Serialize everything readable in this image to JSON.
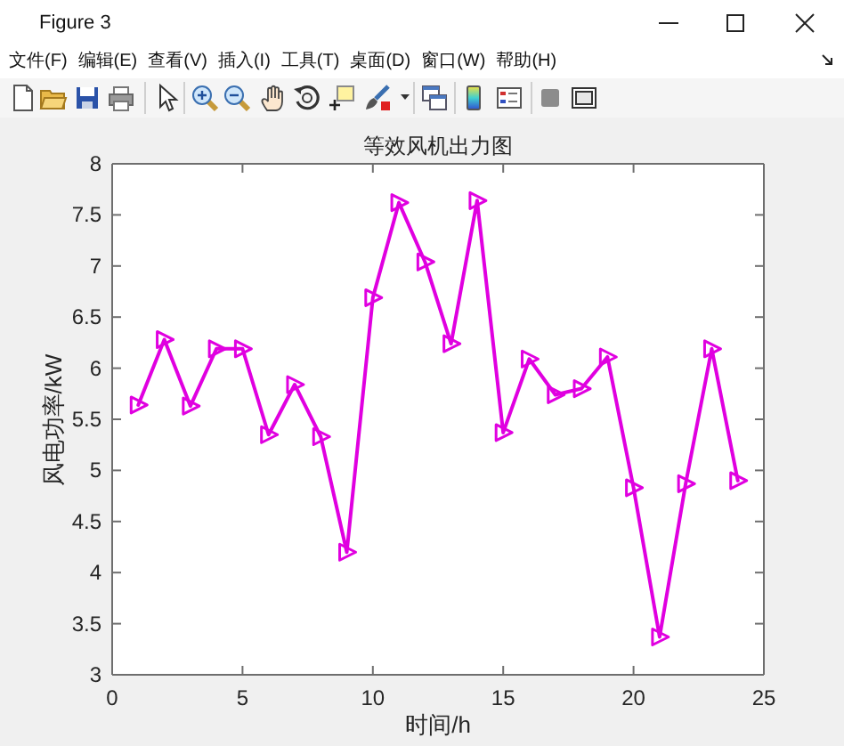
{
  "chart_data": {
    "type": "line",
    "title": "等效风机出力图",
    "xlabel": "时间/h",
    "ylabel": "风电功率/kW",
    "x": [
      1,
      2,
      3,
      4,
      5,
      6,
      7,
      8,
      9,
      10,
      11,
      12,
      13,
      14,
      15,
      16,
      17,
      18,
      19,
      20,
      21,
      22,
      23,
      24
    ],
    "values": [
      5.64,
      6.28,
      5.63,
      6.19,
      6.19,
      5.35,
      5.84,
      5.33,
      4.2,
      6.69,
      7.62,
      7.04,
      6.24,
      7.64,
      5.37,
      6.09,
      5.74,
      5.8,
      6.11,
      4.83,
      3.37,
      4.87,
      6.19,
      4.9
    ],
    "color": "#e000e0",
    "marker": "triangle",
    "line_style": "solid",
    "xlim": [
      0,
      25
    ],
    "xticks": [
      0,
      5,
      10,
      15,
      20,
      25
    ],
    "ylim": [
      3,
      8
    ],
    "yticks": [
      3,
      3.5,
      4,
      4.5,
      5,
      5.5,
      6,
      6.5,
      7,
      7.5,
      8
    ],
    "annotations": [
      "Figure 3",
      "文件(F)",
      "编辑(E)",
      "查看(V)",
      "插入(I)",
      "工具(T)",
      "桌面(D)",
      "窗口(W)",
      "帮助(H)"
    ]
  }
}
